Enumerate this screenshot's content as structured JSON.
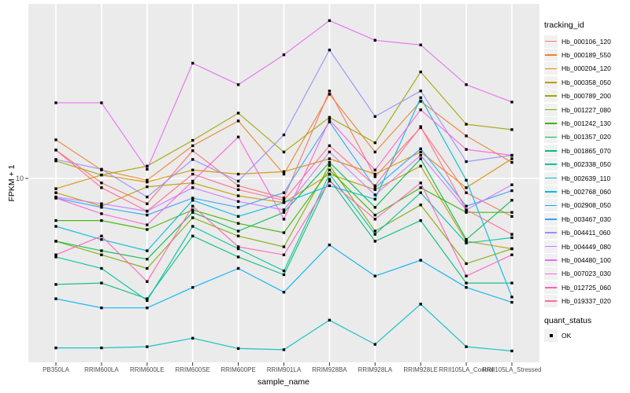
{
  "chart_data": {
    "type": "line",
    "title": "",
    "xlabel": "sample_name",
    "ylabel": "FPKM + 1",
    "y_scale": "log10",
    "y_ticks": [
      {
        "value": 10,
        "label": "10"
      }
    ],
    "grid": "major-only",
    "legend_position": "right",
    "categories": [
      "PB350LA",
      "RRIM600LA",
      "RRIM600LE",
      "RRIM600SE",
      "RRIM600PE",
      "RRIM901LA",
      "RRIM928BA",
      "RRIM928LA",
      "RRIM928LE",
      "RRII105LA_Control",
      "RRII105LA_Stressed"
    ],
    "point_marker": {
      "shape": "filled-square",
      "color": "#000000"
    },
    "legend": {
      "color_title": "tracking_id",
      "shape_title": "quant_status",
      "shape_entries": [
        {
          "label": "OK",
          "marker": "filled-square"
        }
      ]
    },
    "series": [
      {
        "name": "Hb_000106_120",
        "color": "#F8766D",
        "values": [
          13.8,
          9.5,
          7.5,
          13.7,
          9.2,
          8.0,
          27.0,
          10.2,
          17.8,
          8.5,
          6.5
        ]
      },
      {
        "name": "Hb_000189_550",
        "color": "#EA8331",
        "values": [
          15.5,
          11.0,
          9.8,
          14.5,
          19.2,
          10.5,
          26.0,
          13.5,
          24.0,
          16.2,
          12.0
        ]
      },
      {
        "name": "Hb_000204_120",
        "color": "#D89000",
        "values": [
          8.9,
          10.4,
          9.6,
          11.0,
          10.5,
          10.8,
          12.5,
          10.5,
          13.5,
          9.0,
          12.5
        ]
      },
      {
        "name": "Hb_000358_050",
        "color": "#C09B00",
        "values": [
          8.5,
          7.3,
          9.1,
          9.5,
          8.2,
          7.6,
          10.5,
          8.8,
          11.5,
          4.9,
          4.5
        ]
      },
      {
        "name": "Hb_000789_200",
        "color": "#A3A500",
        "values": [
          12.2,
          10.4,
          11.5,
          15.4,
          21.0,
          13.5,
          20.0,
          15.0,
          33.5,
          18.5,
          17.4
        ]
      },
      {
        "name": "Hb_001227_080",
        "color": "#7CAE00",
        "values": [
          4.9,
          4.2,
          3.6,
          6.4,
          5.2,
          4.6,
          11.6,
          5.5,
          7.4,
          3.8,
          4.5
        ]
      },
      {
        "name": "Hb_001242_130",
        "color": "#39B600",
        "values": [
          6.2,
          6.2,
          5.6,
          7.0,
          6.0,
          5.4,
          11.0,
          6.6,
          9.0,
          6.8,
          6.8
        ]
      },
      {
        "name": "Hb_001357_020",
        "color": "#00BB4E",
        "values": [
          4.9,
          4.4,
          4.0,
          6.8,
          5.5,
          6.8,
          12.0,
          7.2,
          12.5,
          5.0,
          7.8
        ]
      },
      {
        "name": "Hb_001865_070",
        "color": "#00BF7D",
        "values": [
          3.0,
          3.05,
          2.55,
          5.2,
          4.1,
          3.35,
          9.9,
          4.9,
          6.2,
          3.05,
          3.05
        ]
      },
      {
        "name": "Hb_002338_050",
        "color": "#00C1A3",
        "values": [
          4.1,
          3.6,
          2.5,
          5.8,
          4.5,
          3.5,
          10.5,
          5.3,
          8.5,
          4.8,
          5.1
        ]
      },
      {
        "name": "Hb_002639_110",
        "color": "#00BFC4",
        "values": [
          1.46,
          1.46,
          1.48,
          1.63,
          1.45,
          1.43,
          2.0,
          1.52,
          2.4,
          1.48,
          1.41
        ]
      },
      {
        "name": "Hb_002768_060",
        "color": "#00BAE0",
        "values": [
          5.8,
          5.0,
          4.4,
          7.8,
          6.5,
          7.6,
          9.2,
          7.9,
          25.0,
          9.8,
          2.6
        ]
      },
      {
        "name": "Hb_002908_050",
        "color": "#00B0F6",
        "values": [
          2.55,
          2.3,
          2.3,
          2.9,
          3.6,
          2.75,
          4.7,
          3.3,
          3.95,
          2.9,
          2.45
        ]
      },
      {
        "name": "Hb_003467_030",
        "color": "#35A2FF",
        "values": [
          8.0,
          7.2,
          6.6,
          8.0,
          7.2,
          8.5,
          19.0,
          9.0,
          14.0,
          7.3,
          8.7
        ]
      },
      {
        "name": "Hb_004411_060",
        "color": "#9590FF",
        "values": [
          12.4,
          11.1,
          8.1,
          12.4,
          9.7,
          16.4,
          43.0,
          20.2,
          27.0,
          12.1,
          13.0
        ]
      },
      {
        "name": "Hb_004449_080",
        "color": "#C77CFF",
        "values": [
          8.1,
          7.5,
          6.9,
          9.0,
          7.7,
          7.0,
          13.5,
          8.3,
          13.0,
          7.0,
          9.3
        ]
      },
      {
        "name": "Hb_004480_100",
        "color": "#E76BF3",
        "values": [
          23.6,
          23.6,
          11.1,
          37.0,
          29.0,
          40.7,
          60.0,
          48.0,
          45.5,
          29.0,
          23.8
        ]
      },
      {
        "name": "Hb_007023_030",
        "color": "#FA62DB",
        "values": [
          8.0,
          6.7,
          5.9,
          9.7,
          16.0,
          6.3,
          19.4,
          11.0,
          21.8,
          13.9,
          13.0
        ]
      },
      {
        "name": "Hb_012725_060",
        "color": "#FF62BC",
        "values": [
          4.2,
          5.2,
          3.1,
          7.3,
          4.6,
          4.2,
          9.7,
          6.3,
          9.5,
          3.3,
          4.2
        ]
      },
      {
        "name": "Hb_019337_020",
        "color": "#FF6A98",
        "values": [
          13.8,
          9.0,
          6.9,
          10.5,
          8.8,
          7.8,
          14.5,
          9.2,
          18.0,
          7.0,
          5.3
        ]
      }
    ]
  },
  "style": {
    "panel_bg": "#EBEBEB",
    "grid_color": "#FFFFFF",
    "tick_mark_color": "#333333",
    "tick_text_color": "#4D4D4D"
  }
}
